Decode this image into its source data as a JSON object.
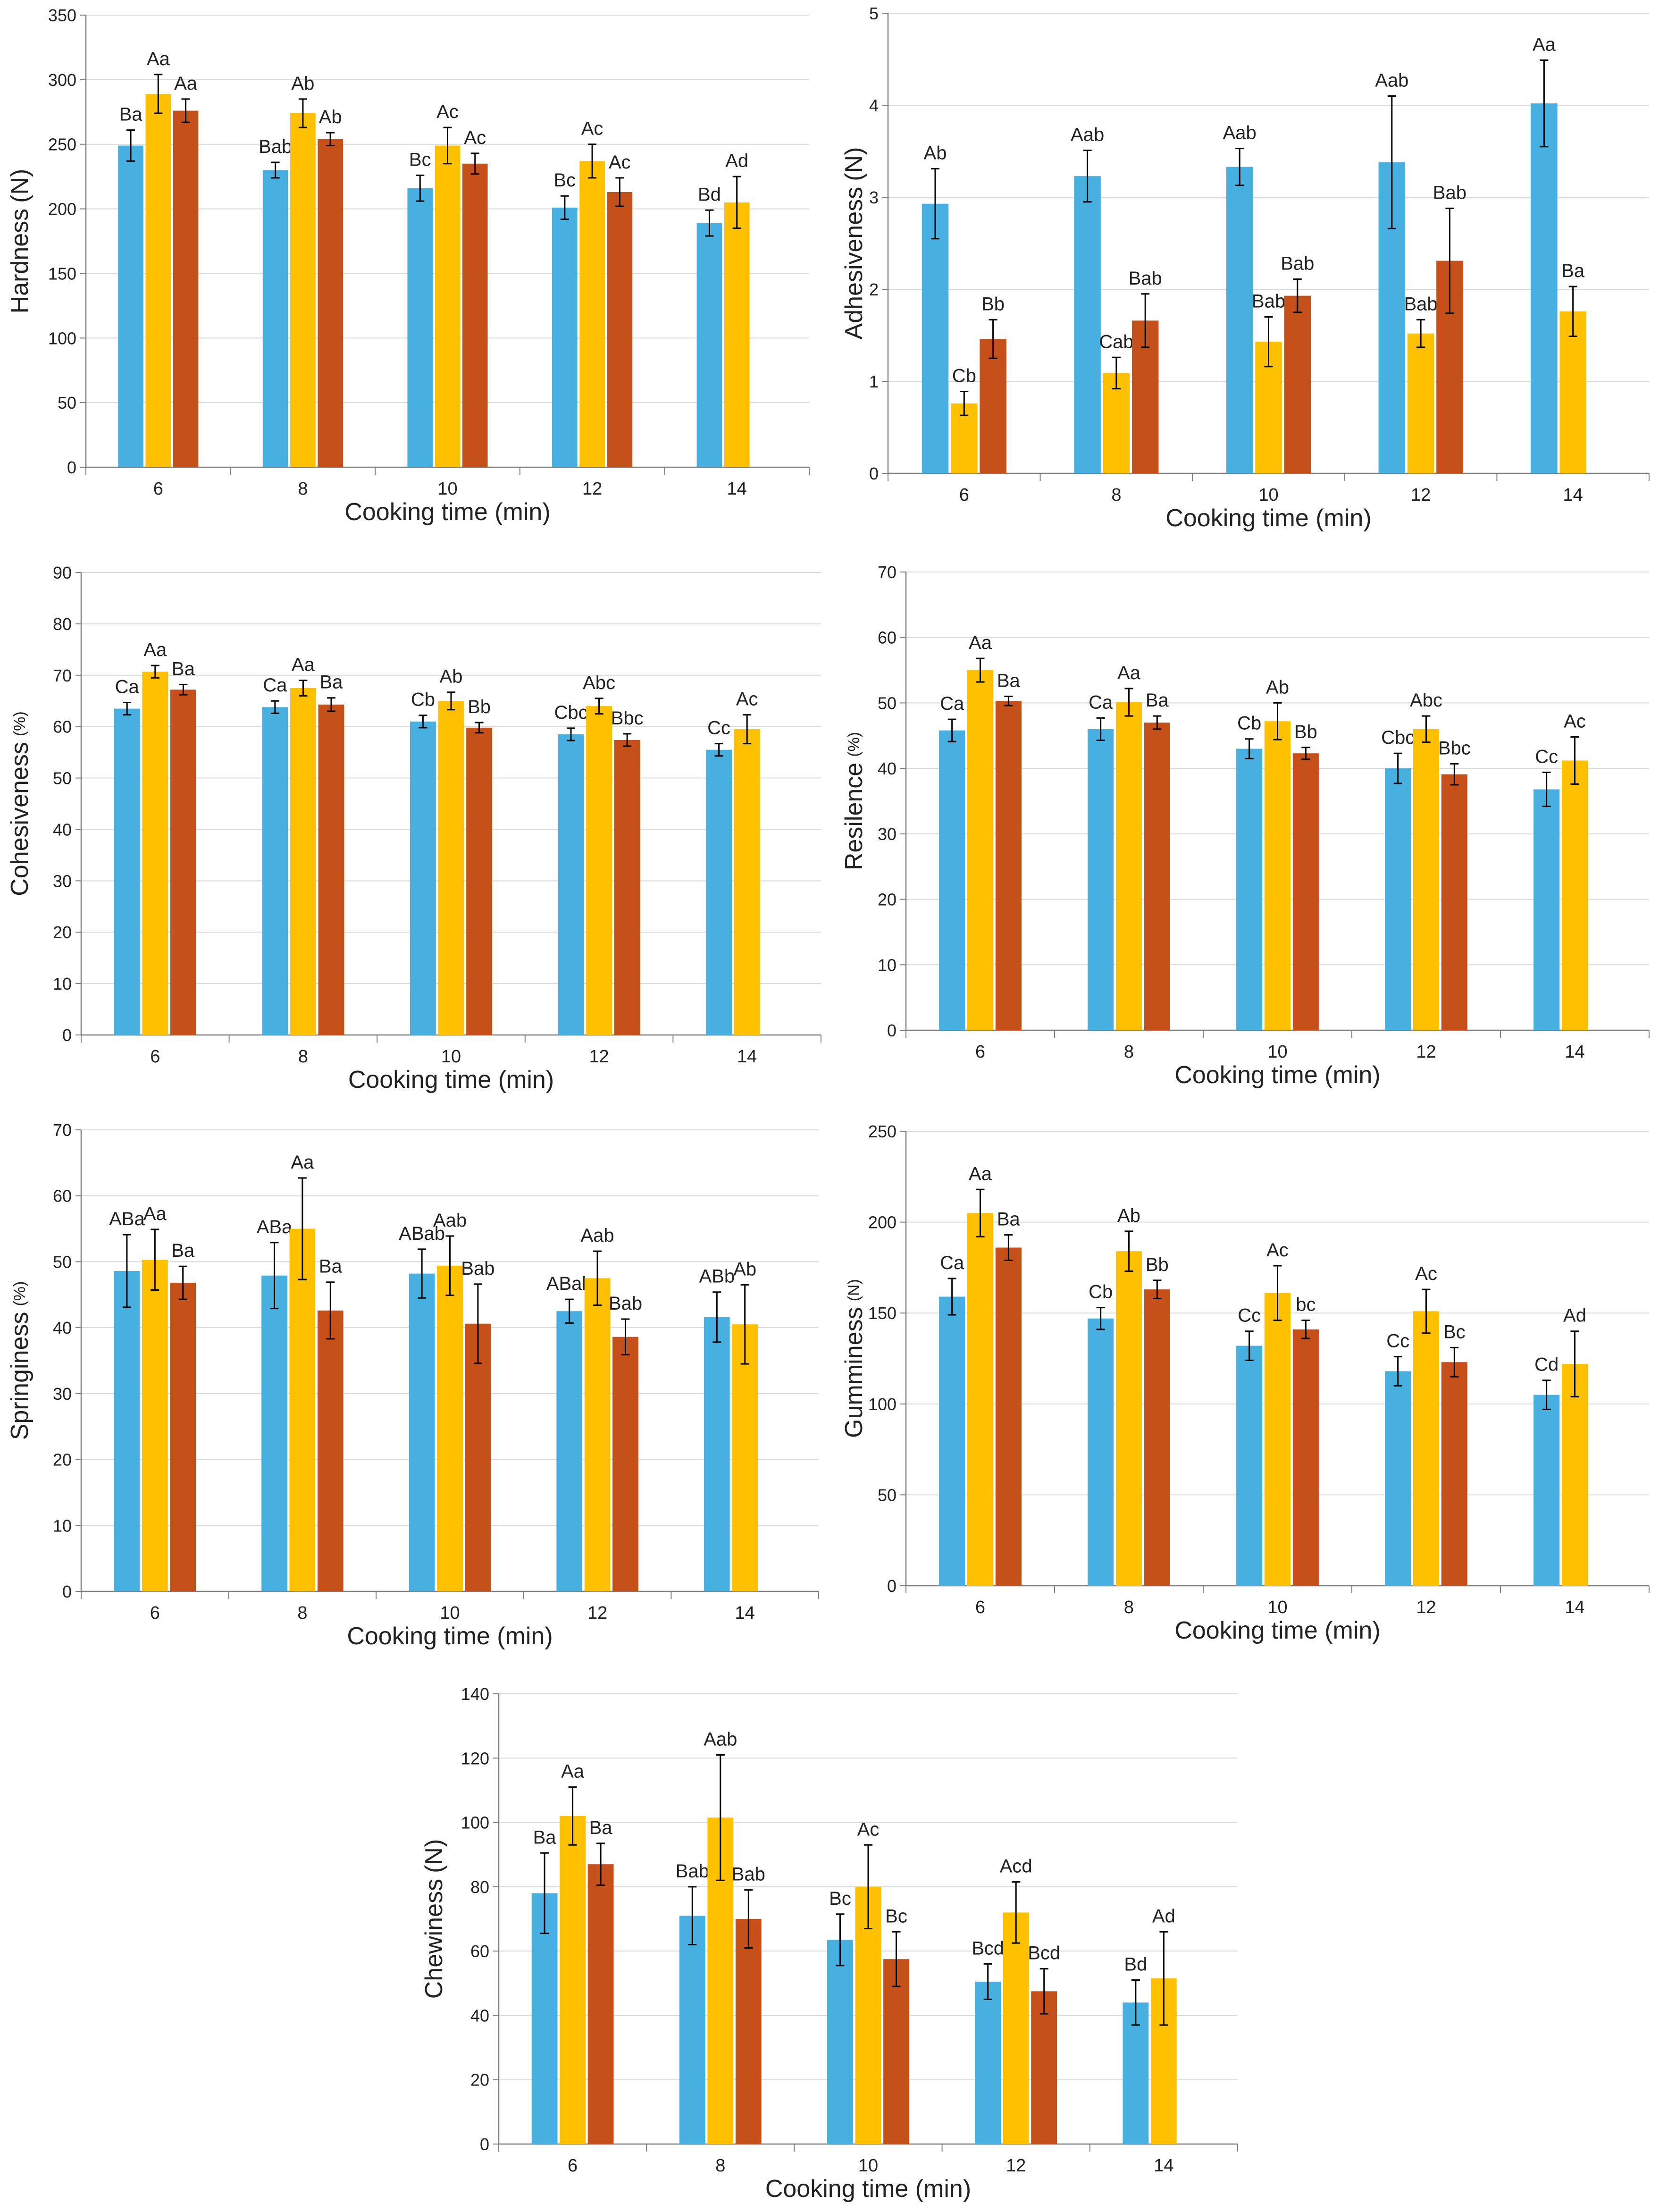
{
  "colors": {
    "series1": "#48b0e0",
    "series2": "#ffc000",
    "series3": "#c5501a",
    "axis": "#7f7f7f",
    "grid": "#d9d9d9",
    "error": "#000000"
  },
  "chart_data": [
    {
      "id": "hardness",
      "type": "bar",
      "ylabel_main": "Hardness",
      "ylabel_unit": "(N)",
      "ylabel_unit_small": false,
      "xlabel": "Cooking time (min)",
      "ylim": [
        0,
        350
      ],
      "ytick_step": 50,
      "ytick_labels": [
        "0",
        "50",
        "100",
        "150",
        "200",
        "250",
        "300",
        "350"
      ],
      "categories": [
        "6",
        "8",
        "10",
        "12",
        "14"
      ],
      "series": [
        {
          "name": "series1",
          "values": [
            249,
            230,
            216,
            201,
            189
          ],
          "errors": [
            12,
            6,
            10,
            9,
            10
          ],
          "labels": [
            "Ba",
            "Bab",
            "Bc",
            "Bc",
            "Bd"
          ]
        },
        {
          "name": "series2",
          "values": [
            289,
            274,
            249,
            237,
            205
          ],
          "errors": [
            15,
            11,
            14,
            13,
            20
          ],
          "labels": [
            "Aa",
            "Ab",
            "Ac",
            "Ac",
            "Ad"
          ]
        },
        {
          "name": "series3",
          "values": [
            276,
            254,
            235,
            213,
            null
          ],
          "errors": [
            9,
            5,
            8,
            11,
            null
          ],
          "labels": [
            "Aa",
            "Ab",
            "Ac",
            "Ac",
            ""
          ]
        }
      ]
    },
    {
      "id": "adhesiveness",
      "type": "bar",
      "ylabel_main": "Adhesiveness",
      "ylabel_unit": "(N)",
      "ylabel_unit_small": false,
      "xlabel": "Cooking time (min)",
      "ylim": [
        0,
        5
      ],
      "ytick_step": 1,
      "ytick_labels": [
        "0",
        "1",
        "2",
        "3",
        "4",
        "5"
      ],
      "categories": [
        "6",
        "8",
        "10",
        "12",
        "14"
      ],
      "series": [
        {
          "name": "series1",
          "values": [
            2.93,
            3.23,
            3.33,
            3.38,
            4.02
          ],
          "errors": [
            0.38,
            0.28,
            0.2,
            0.72,
            0.47
          ],
          "labels": [
            "Ab",
            "Aab",
            "Aab",
            "Aab",
            "Aa"
          ]
        },
        {
          "name": "series2",
          "values": [
            0.76,
            1.09,
            1.43,
            1.52,
            1.76
          ],
          "errors": [
            0.13,
            0.17,
            0.27,
            0.15,
            0.27
          ],
          "labels": [
            "Cb",
            "Cab",
            "Bab",
            "Bab",
            "Ba"
          ]
        },
        {
          "name": "series3",
          "values": [
            1.46,
            1.66,
            1.93,
            2.31,
            null
          ],
          "errors": [
            0.21,
            0.29,
            0.18,
            0.57,
            null
          ],
          "labels": [
            "Bb",
            "Bab",
            "Bab",
            "Bab",
            ""
          ]
        }
      ]
    },
    {
      "id": "cohesiveness",
      "type": "bar",
      "ylabel_main": "Cohesiveness",
      "ylabel_unit": "(%)",
      "ylabel_unit_small": true,
      "xlabel": "Cooking time (min)",
      "ylim": [
        0,
        90
      ],
      "ytick_step": 10,
      "ytick_labels": [
        "0",
        "10",
        "20",
        "30",
        "40",
        "50",
        "60",
        "70",
        "80",
        "90"
      ],
      "categories": [
        "6",
        "8",
        "10",
        "12",
        "14"
      ],
      "series": [
        {
          "name": "series1",
          "values": [
            63.5,
            63.8,
            61,
            58.5,
            55.5
          ],
          "errors": [
            1.2,
            1.2,
            1.2,
            1.2,
            1.2
          ],
          "labels": [
            "Ca",
            "Ca",
            "Cb",
            "Cbc",
            "Cc"
          ]
        },
        {
          "name": "series2",
          "values": [
            70.7,
            67.5,
            65,
            64,
            59.5
          ],
          "errors": [
            1.2,
            1.5,
            1.7,
            1.5,
            2.8
          ],
          "labels": [
            "Aa",
            "Aa",
            "Ab",
            "Abc",
            "Ac"
          ]
        },
        {
          "name": "series3",
          "values": [
            67.2,
            64.3,
            59.8,
            57.4,
            null
          ],
          "errors": [
            1,
            1.3,
            1,
            1.2,
            null
          ],
          "labels": [
            "Ba",
            "Ba",
            "Bb",
            "Bbc",
            ""
          ]
        }
      ]
    },
    {
      "id": "resilience",
      "type": "bar",
      "ylabel_main": "Resilence",
      "ylabel_unit": "(%)",
      "ylabel_unit_small": true,
      "xlabel": "Cooking time (min)",
      "ylim": [
        0,
        70
      ],
      "ytick_step": 10,
      "ytick_labels": [
        "0",
        "10",
        "20",
        "30",
        "40",
        "50",
        "60",
        "70"
      ],
      "categories": [
        "6",
        "8",
        "10",
        "12",
        "14"
      ],
      "series": [
        {
          "name": "series1",
          "values": [
            45.8,
            46,
            43,
            40,
            36.8
          ],
          "errors": [
            1.7,
            1.7,
            1.5,
            2.3,
            2.6
          ],
          "labels": [
            "Ca",
            "Ca",
            "Cb",
            "Cbc",
            "Cc"
          ]
        },
        {
          "name": "series2",
          "values": [
            55,
            50.1,
            47.2,
            46,
            41.2
          ],
          "errors": [
            1.8,
            2.1,
            2.8,
            2,
            3.6
          ],
          "labels": [
            "Aa",
            "Aa",
            "Ab",
            "Abc",
            "Ac"
          ]
        },
        {
          "name": "series3",
          "values": [
            50.3,
            47,
            42.3,
            39.1,
            null
          ],
          "errors": [
            0.7,
            1,
            0.9,
            1.6,
            null
          ],
          "labels": [
            "Ba",
            "Ba",
            "Bb",
            "Bbc",
            ""
          ]
        }
      ]
    },
    {
      "id": "springiness",
      "type": "bar",
      "ylabel_main": "Springiness",
      "ylabel_unit": "(%)",
      "ylabel_unit_small": true,
      "xlabel": "Cooking time (min)",
      "ylim": [
        0,
        70
      ],
      "ytick_step": 10,
      "ytick_labels": [
        "0",
        "10",
        "20",
        "30",
        "40",
        "50",
        "60",
        "70"
      ],
      "categories": [
        "6",
        "8",
        "10",
        "12",
        "14"
      ],
      "series": [
        {
          "name": "series1",
          "values": [
            48.6,
            47.9,
            48.2,
            42.5,
            41.6
          ],
          "errors": [
            5.5,
            5,
            3.7,
            1.8,
            3.8
          ],
          "labels": [
            "ABa",
            "ABa",
            "ABab",
            "ABab",
            "ABb"
          ]
        },
        {
          "name": "series2",
          "values": [
            50.3,
            55,
            49.4,
            47.5,
            40.5
          ],
          "errors": [
            4.6,
            7.7,
            4.5,
            4.1,
            6
          ],
          "labels": [
            "Aa",
            "Aa",
            "Aab",
            "Aab",
            "Ab"
          ]
        },
        {
          "name": "series3",
          "values": [
            46.8,
            42.6,
            40.6,
            38.6,
            null
          ],
          "errors": [
            2.5,
            4.3,
            6,
            2.7,
            null
          ],
          "labels": [
            "Ba",
            "Ba",
            "Bab",
            "Bab",
            ""
          ]
        }
      ]
    },
    {
      "id": "gumminess",
      "type": "bar",
      "ylabel_main": "Gumminess",
      "ylabel_unit": "(N)",
      "ylabel_unit_small": true,
      "xlabel": "Cooking time (min)",
      "ylim": [
        0,
        250
      ],
      "ytick_step": 50,
      "ytick_labels": [
        "0",
        "50",
        "100",
        "150",
        "200",
        "250"
      ],
      "categories": [
        "6",
        "8",
        "10",
        "12",
        "14"
      ],
      "series": [
        {
          "name": "series1",
          "values": [
            159,
            147,
            132,
            118,
            105
          ],
          "errors": [
            10,
            6,
            8,
            8,
            8
          ],
          "labels": [
            "Ca",
            "Cb",
            "Cc",
            "Cc",
            "Cd"
          ]
        },
        {
          "name": "series2",
          "values": [
            205,
            184,
            161,
            151,
            122
          ],
          "errors": [
            13,
            11,
            15,
            12,
            18
          ],
          "labels": [
            "Aa",
            "Ab",
            "Ac",
            "Ac",
            "Ad"
          ]
        },
        {
          "name": "series3",
          "values": [
            186,
            163,
            141,
            123,
            null
          ],
          "errors": [
            7,
            5,
            5,
            8,
            null
          ],
          "labels": [
            "Ba",
            "Bb",
            "bc",
            "Bc",
            ""
          ]
        }
      ]
    },
    {
      "id": "chewiness",
      "type": "bar",
      "ylabel_main": "Chewiness",
      "ylabel_unit": "(N)",
      "ylabel_unit_small": false,
      "xlabel": "Cooking time (min)",
      "ylim": [
        0,
        140
      ],
      "ytick_step": 20,
      "ytick_labels": [
        "0",
        "20",
        "40",
        "60",
        "80",
        "100",
        "120",
        "140"
      ],
      "categories": [
        "6",
        "8",
        "10",
        "12",
        "14"
      ],
      "series": [
        {
          "name": "series1",
          "values": [
            78,
            71,
            63.5,
            50.5,
            44
          ],
          "errors": [
            12.5,
            9,
            8,
            5.5,
            7
          ],
          "labels": [
            "Ba",
            "Bab",
            "Bc",
            "Bcd",
            "Bd"
          ]
        },
        {
          "name": "series2",
          "values": [
            102,
            101.5,
            80,
            72,
            51.5
          ],
          "errors": [
            9,
            19.5,
            13,
            9.5,
            14.5
          ],
          "labels": [
            "Aa",
            "Aab",
            "Ac",
            "Acd",
            "Ad"
          ]
        },
        {
          "name": "series3",
          "values": [
            87,
            70,
            57.5,
            47.5,
            null
          ],
          "errors": [
            6.5,
            9,
            8.5,
            7,
            null
          ],
          "labels": [
            "Ba",
            "Bab",
            "Bc",
            "Bcd",
            ""
          ]
        }
      ]
    }
  ]
}
